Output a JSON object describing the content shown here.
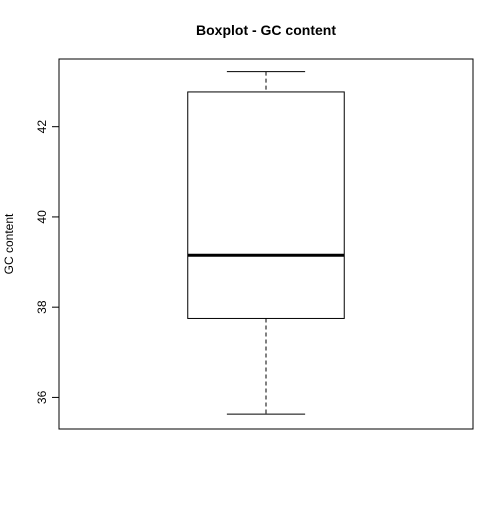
{
  "chart_data": {
    "type": "box",
    "title": "Boxplot - GC content",
    "xlabel": "",
    "ylabel": "GC content",
    "ylim": [
      35.3,
      43.5
    ],
    "yticks": [
      36,
      38,
      40,
      42
    ],
    "ytick_labels": [
      "36",
      "38",
      "40",
      "42"
    ],
    "grid": false,
    "legend": "none",
    "boxes": [
      {
        "whisker_low": 35.63,
        "q1": 37.75,
        "median": 39.15,
        "q3": 42.77,
        "whisker_high": 43.22
      }
    ],
    "colors": {
      "stroke": "#000000",
      "background": "#ffffff"
    }
  }
}
